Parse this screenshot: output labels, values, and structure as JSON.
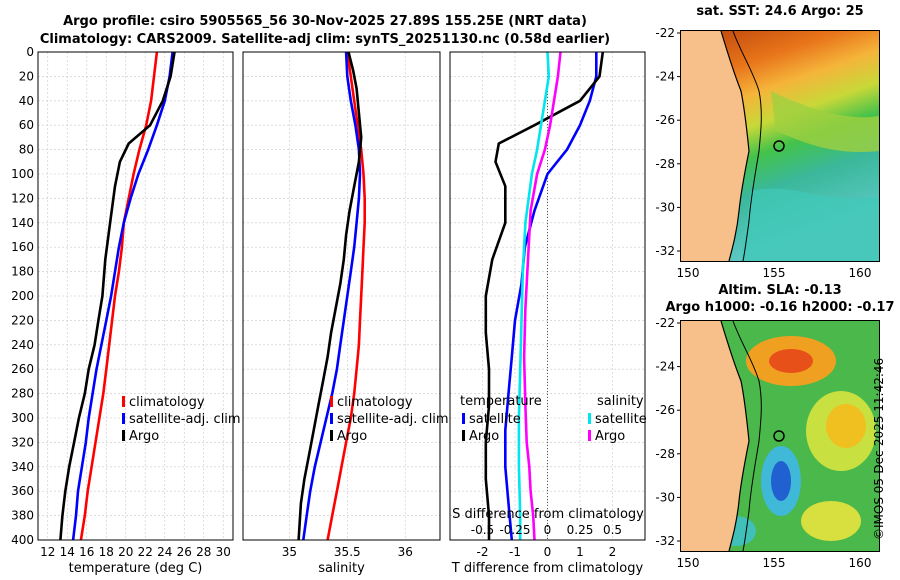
{
  "title_line1": "Argo profile: csiro 5905565_56 30-Nov-2025 27.89S 155.25E (NRT data)",
  "title_line2": "Climatology: CARS2009. Satellite-adj clim: synTS_20251130.nc (0.58d earlier)",
  "credit": "©IMOS 05-Dec-2025 11:42:46",
  "colors": {
    "climatology": "#ff0000",
    "satellite": "#0000ff",
    "argo": "#000000",
    "sal_satellite": "#00e5ee",
    "sal_argo": "#ff00ff",
    "land": "#f7c08a"
  },
  "chart_data": [
    {
      "type": "line",
      "title": "",
      "xlabel": "temperature (deg C)",
      "ylabel": "",
      "xlim": [
        11,
        31
      ],
      "ylim": [
        400,
        0
      ],
      "xticks": [
        "12",
        "14",
        "16",
        "18",
        "20",
        "22",
        "24",
        "26",
        "28",
        "30"
      ],
      "yticks": [
        "0",
        "20",
        "40",
        "60",
        "80",
        "100",
        "120",
        "140",
        "160",
        "180",
        "200",
        "220",
        "240",
        "260",
        "280",
        "300",
        "320",
        "340",
        "360",
        "380",
        "400"
      ],
      "legend": [
        "climatology",
        "satellite-adj. clim",
        "Argo"
      ],
      "series": [
        {
          "name": "climatology",
          "points": [
            [
              23.2,
              0
            ],
            [
              22.9,
              20
            ],
            [
              22.6,
              40
            ],
            [
              22.1,
              60
            ],
            [
              21.4,
              80
            ],
            [
              20.8,
              100
            ],
            [
              20.3,
              120
            ],
            [
              19.8,
              140
            ],
            [
              19.6,
              160
            ],
            [
              19.3,
              180
            ],
            [
              18.9,
              200
            ],
            [
              18.6,
              220
            ],
            [
              18.3,
              240
            ],
            [
              18.0,
              260
            ],
            [
              17.7,
              280
            ],
            [
              17.3,
              300
            ],
            [
              16.9,
              320
            ],
            [
              16.5,
              340
            ],
            [
              16.1,
              360
            ],
            [
              15.8,
              380
            ],
            [
              15.4,
              400
            ]
          ]
        },
        {
          "name": "satellite-adj. clim",
          "points": [
            [
              24.8,
              0
            ],
            [
              24.5,
              20
            ],
            [
              24.0,
              40
            ],
            [
              23.2,
              60
            ],
            [
              22.3,
              80
            ],
            [
              21.3,
              100
            ],
            [
              20.5,
              120
            ],
            [
              19.8,
              140
            ],
            [
              19.3,
              160
            ],
            [
              18.9,
              180
            ],
            [
              18.5,
              200
            ],
            [
              18.0,
              220
            ],
            [
              17.5,
              240
            ],
            [
              17.0,
              260
            ],
            [
              16.6,
              280
            ],
            [
              16.2,
              300
            ],
            [
              15.9,
              320
            ],
            [
              15.5,
              340
            ],
            [
              15.1,
              360
            ],
            [
              14.9,
              380
            ],
            [
              14.6,
              400
            ]
          ]
        },
        {
          "name": "Argo",
          "points": [
            [
              25.0,
              0
            ],
            [
              24.6,
              20
            ],
            [
              23.8,
              40
            ],
            [
              22.5,
              60
            ],
            [
              20.3,
              75
            ],
            [
              19.4,
              90
            ],
            [
              18.9,
              110
            ],
            [
              18.4,
              140
            ],
            [
              17.9,
              170
            ],
            [
              17.6,
              200
            ],
            [
              17.2,
              220
            ],
            [
              16.8,
              240
            ],
            [
              16.2,
              260
            ],
            [
              15.8,
              280
            ],
            [
              15.2,
              300
            ],
            [
              14.7,
              320
            ],
            [
              14.2,
              340
            ],
            [
              13.8,
              360
            ],
            [
              13.5,
              380
            ],
            [
              13.3,
              400
            ]
          ]
        }
      ]
    },
    {
      "type": "line",
      "xlabel": "salinity",
      "xlim": [
        34.6,
        36.3
      ],
      "ylim": [
        400,
        0
      ],
      "xticks": [
        "35",
        "35.5",
        "36"
      ],
      "legend": [
        "climatology",
        "satellite-adj. clim",
        "Argo"
      ],
      "series": [
        {
          "name": "climatology",
          "points": [
            [
              35.5,
              0
            ],
            [
              35.53,
              20
            ],
            [
              35.56,
              40
            ],
            [
              35.59,
              60
            ],
            [
              35.62,
              80
            ],
            [
              35.64,
              100
            ],
            [
              35.65,
              120
            ],
            [
              35.65,
              140
            ],
            [
              35.64,
              160
            ],
            [
              35.63,
              180
            ],
            [
              35.62,
              200
            ],
            [
              35.61,
              220
            ],
            [
              35.6,
              240
            ],
            [
              35.58,
              260
            ],
            [
              35.56,
              280
            ],
            [
              35.53,
              300
            ],
            [
              35.49,
              320
            ],
            [
              35.45,
              340
            ],
            [
              35.41,
              360
            ],
            [
              35.37,
              380
            ],
            [
              35.33,
              400
            ]
          ]
        },
        {
          "name": "satellite-adj. clim",
          "points": [
            [
              35.49,
              0
            ],
            [
              35.5,
              20
            ],
            [
              35.53,
              40
            ],
            [
              35.57,
              60
            ],
            [
              35.6,
              80
            ],
            [
              35.61,
              100
            ],
            [
              35.6,
              120
            ],
            [
              35.58,
              140
            ],
            [
              35.56,
              160
            ],
            [
              35.53,
              180
            ],
            [
              35.5,
              200
            ],
            [
              35.47,
              220
            ],
            [
              35.44,
              240
            ],
            [
              35.41,
              260
            ],
            [
              35.37,
              280
            ],
            [
              35.32,
              300
            ],
            [
              35.27,
              320
            ],
            [
              35.22,
              340
            ],
            [
              35.18,
              360
            ],
            [
              35.15,
              380
            ],
            [
              35.12,
              400
            ]
          ]
        },
        {
          "name": "Argo",
          "points": [
            [
              35.51,
              0
            ],
            [
              35.55,
              15
            ],
            [
              35.58,
              30
            ],
            [
              35.6,
              50
            ],
            [
              35.62,
              70
            ],
            [
              35.6,
              90
            ],
            [
              35.56,
              110
            ],
            [
              35.52,
              130
            ],
            [
              35.49,
              150
            ],
            [
              35.47,
              170
            ],
            [
              35.44,
              190
            ],
            [
              35.4,
              210
            ],
            [
              35.36,
              230
            ],
            [
              35.33,
              250
            ],
            [
              35.29,
              270
            ],
            [
              35.25,
              290
            ],
            [
              35.21,
              310
            ],
            [
              35.17,
              330
            ],
            [
              35.13,
              350
            ],
            [
              35.1,
              370
            ],
            [
              35.08,
              400
            ]
          ]
        }
      ]
    },
    {
      "type": "line",
      "xlabel": "T difference from climatology",
      "xlabel_top": "S difference from climatology",
      "xlim": [
        -3.0,
        3.0
      ],
      "ylim": [
        400,
        0
      ],
      "xticks": [
        "-2",
        "-1",
        "0",
        "1",
        "2"
      ],
      "xticks_top": [
        "-0.5",
        "-0.25",
        "0",
        "0.25",
        "0.5"
      ],
      "legend_left_title": "temperature",
      "legend_right_title": "salinity",
      "legend": [
        "satellite",
        "Argo",
        "satellite",
        "Argo"
      ],
      "series": [
        {
          "name": "T satellite",
          "points": [
            [
              1.5,
              0
            ],
            [
              1.5,
              20
            ],
            [
              1.3,
              40
            ],
            [
              1.0,
              60
            ],
            [
              0.6,
              80
            ],
            [
              0.0,
              100
            ],
            [
              -0.4,
              130
            ],
            [
              -0.7,
              160
            ],
            [
              -0.8,
              190
            ],
            [
              -1.0,
              220
            ],
            [
              -1.1,
              250
            ],
            [
              -1.2,
              280
            ],
            [
              -1.3,
              310
            ],
            [
              -1.3,
              340
            ],
            [
              -1.2,
              370
            ],
            [
              -1.1,
              400
            ]
          ]
        },
        {
          "name": "T Argo",
          "points": [
            [
              1.7,
              0
            ],
            [
              1.6,
              20
            ],
            [
              1.0,
              40
            ],
            [
              -0.4,
              60
            ],
            [
              -1.5,
              75
            ],
            [
              -1.6,
              90
            ],
            [
              -1.3,
              110
            ],
            [
              -1.3,
              140
            ],
            [
              -1.7,
              170
            ],
            [
              -1.9,
              200
            ],
            [
              -1.9,
              230
            ],
            [
              -1.8,
              260
            ],
            [
              -1.8,
              290
            ],
            [
              -1.9,
              320
            ],
            [
              -1.9,
              350
            ],
            [
              -1.8,
              380
            ],
            [
              -1.8,
              400
            ]
          ]
        },
        {
          "name": "S satellite",
          "points": [
            [
              0.0,
              0
            ],
            [
              0.01,
              20
            ],
            [
              -0.02,
              40
            ],
            [
              -0.05,
              60
            ],
            [
              -0.08,
              80
            ],
            [
              -0.12,
              100
            ],
            [
              -0.17,
              140
            ],
            [
              -0.19,
              180
            ],
            [
              -0.2,
              220
            ],
            [
              -0.21,
              260
            ],
            [
              -0.22,
              300
            ],
            [
              -0.22,
              340
            ],
            [
              -0.21,
              380
            ],
            [
              -0.21,
              400
            ]
          ]
        },
        {
          "name": "S Argo",
          "points": [
            [
              0.1,
              0
            ],
            [
              0.08,
              20
            ],
            [
              0.05,
              40
            ],
            [
              0.02,
              60
            ],
            [
              -0.02,
              80
            ],
            [
              -0.08,
              100
            ],
            [
              -0.13,
              130
            ],
            [
              -0.15,
              170
            ],
            [
              -0.17,
              210
            ],
            [
              -0.18,
              250
            ],
            [
              -0.17,
              290
            ],
            [
              -0.16,
              320
            ],
            [
              -0.14,
              340
            ],
            [
              -0.13,
              360
            ],
            [
              -0.11,
              380
            ],
            [
              -0.1,
              400
            ]
          ]
        }
      ]
    }
  ],
  "maps": [
    {
      "label": "sat. SST: 24.6 Argo: 25",
      "yticks": [
        "-22",
        "-24",
        "-26",
        "-28",
        "-30",
        "-32"
      ],
      "xticks": [
        "150",
        "155",
        "160"
      ]
    },
    {
      "label_line1": "Altim. SLA: -0.13",
      "label_line2": "Argo h1000: -0.16 h2000: -0.17",
      "yticks": [
        "-22",
        "-24",
        "-26",
        "-28",
        "-30",
        "-32"
      ],
      "xticks": [
        "150",
        "155",
        "160"
      ]
    }
  ]
}
